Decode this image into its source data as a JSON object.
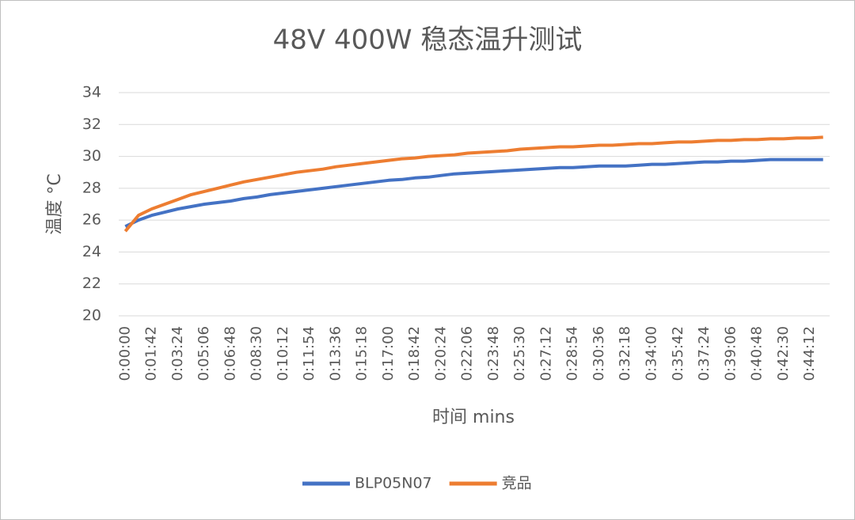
{
  "chart_data": {
    "type": "line",
    "title": "48V 400W 稳态温升测试",
    "x_label": "时间 mins",
    "y_label": "温度 °C",
    "categories": [
      "0:00:00",
      null,
      "0:01:42",
      null,
      "0:03:24",
      null,
      "0:05:06",
      null,
      "0:06:48",
      null,
      "0:08:30",
      null,
      "0:10:12",
      null,
      "0:11:54",
      null,
      "0:13:36",
      null,
      "0:15:18",
      null,
      "0:17:00",
      null,
      "0:18:42",
      null,
      "0:20:24",
      null,
      "0:22:06",
      null,
      "0:23:48",
      null,
      "0:25:30",
      null,
      "0:27:12",
      null,
      "0:28:54",
      null,
      "0:30:36",
      null,
      "0:32:18",
      null,
      "0:34:00",
      null,
      "0:35:42",
      null,
      "0:37:24",
      null,
      "0:39:06",
      null,
      "0:40:48",
      null,
      "0:42:30",
      null,
      "0:44:12",
      null
    ],
    "series": [
      {
        "name": "BLP05N07",
        "color": "#4472c4",
        "values": [
          25.6,
          26.0,
          26.3,
          26.5,
          26.7,
          26.85,
          27.0,
          27.1,
          27.2,
          27.35,
          27.45,
          27.6,
          27.7,
          27.8,
          27.9,
          28.0,
          28.1,
          28.2,
          28.3,
          28.4,
          28.5,
          28.55,
          28.65,
          28.7,
          28.8,
          28.9,
          28.95,
          29.0,
          29.05,
          29.1,
          29.15,
          29.2,
          29.25,
          29.3,
          29.3,
          29.35,
          29.4,
          29.4,
          29.4,
          29.45,
          29.5,
          29.5,
          29.55,
          29.6,
          29.65,
          29.65,
          29.7,
          29.7,
          29.75,
          29.8,
          29.8,
          29.8,
          29.8,
          29.8
        ]
      },
      {
        "name": "竞品",
        "color": "#ed7d31",
        "values": [
          25.3,
          26.3,
          26.7,
          27.0,
          27.3,
          27.6,
          27.8,
          28.0,
          28.2,
          28.4,
          28.55,
          28.7,
          28.85,
          29.0,
          29.1,
          29.2,
          29.35,
          29.45,
          29.55,
          29.65,
          29.75,
          29.85,
          29.9,
          30.0,
          30.05,
          30.1,
          30.2,
          30.25,
          30.3,
          30.35,
          30.45,
          30.5,
          30.55,
          30.6,
          30.6,
          30.65,
          30.7,
          30.7,
          30.75,
          30.8,
          30.8,
          30.85,
          30.9,
          30.9,
          30.95,
          31.0,
          31.0,
          31.05,
          31.05,
          31.1,
          31.1,
          31.15,
          31.15,
          31.2
        ]
      }
    ],
    "ylim": [
      20,
      34
    ],
    "yticks": [
      20,
      22,
      24,
      26,
      28,
      30,
      32,
      34
    ],
    "grid": true,
    "legend": "bottom"
  }
}
